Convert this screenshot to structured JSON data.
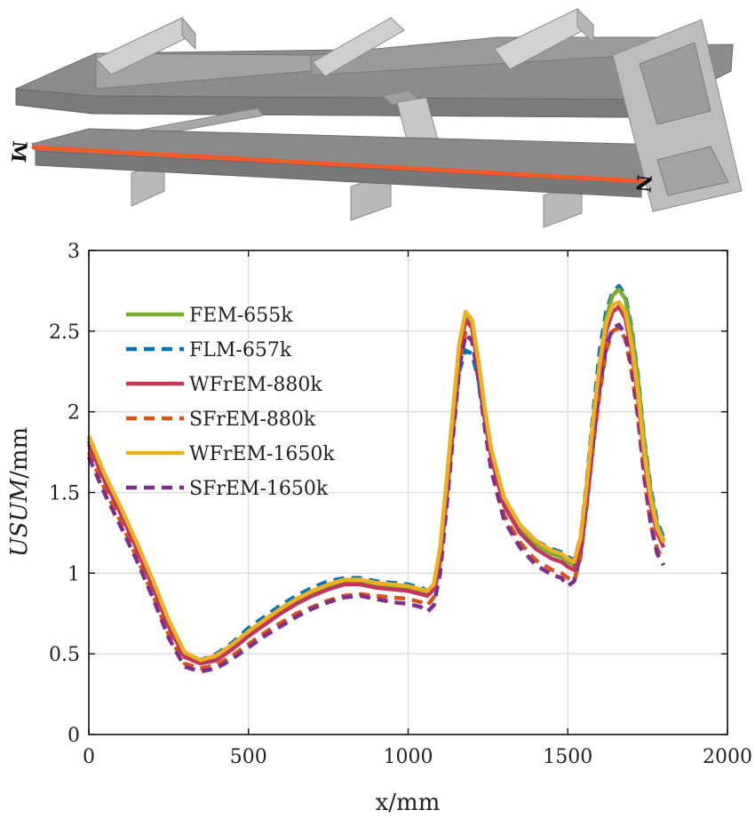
{
  "model_markers": {
    "start_label": "M",
    "end_label": "N"
  },
  "chart_data": {
    "type": "line",
    "title": "",
    "xlabel": "x/mm",
    "ylabel_italic": "USUM",
    "ylabel_unit": "/mm",
    "xlim": [
      0,
      2000
    ],
    "ylim": [
      0,
      3
    ],
    "xticks": [
      0,
      500,
      1000,
      1500,
      2000
    ],
    "yticks": [
      0,
      0.5,
      1,
      1.5,
      2,
      2.5,
      3
    ],
    "xtick_labels": [
      "0",
      "500",
      "1000",
      "1500",
      "2000"
    ],
    "ytick_labels": [
      "0",
      "0.5",
      "1",
      "1.5",
      "2",
      "2.5",
      "3"
    ],
    "grid": true,
    "legend_position": "top-left",
    "x": [
      0,
      50,
      100,
      150,
      200,
      250,
      300,
      350,
      400,
      450,
      500,
      550,
      600,
      650,
      700,
      750,
      800,
      850,
      900,
      950,
      1000,
      1040,
      1060,
      1080,
      1100,
      1120,
      1140,
      1160,
      1180,
      1200,
      1220,
      1240,
      1260,
      1300,
      1350,
      1400,
      1450,
      1480,
      1500,
      1520,
      1540,
      1560,
      1580,
      1600,
      1620,
      1640,
      1660,
      1680,
      1700,
      1720,
      1740,
      1760,
      1780,
      1800
    ],
    "series": [
      {
        "name": "FEM-655k",
        "color": "#77ac30",
        "dash": "solid",
        "values": [
          1.84,
          1.6,
          1.4,
          1.18,
          0.95,
          0.7,
          0.5,
          0.45,
          0.48,
          0.55,
          0.63,
          0.7,
          0.77,
          0.83,
          0.88,
          0.92,
          0.95,
          0.95,
          0.93,
          0.92,
          0.91,
          0.89,
          0.88,
          0.92,
          1.15,
          1.55,
          1.98,
          2.4,
          2.6,
          2.55,
          2.3,
          2.0,
          1.75,
          1.45,
          1.28,
          1.18,
          1.12,
          1.1,
          1.07,
          1.05,
          1.2,
          1.55,
          1.95,
          2.3,
          2.58,
          2.72,
          2.76,
          2.7,
          2.5,
          2.2,
          1.8,
          1.5,
          1.3,
          1.2
        ]
      },
      {
        "name": "FLM-657k",
        "color": "#0072bd",
        "dash": "dashed",
        "values": [
          1.82,
          1.58,
          1.38,
          1.16,
          0.92,
          0.68,
          0.49,
          0.46,
          0.5,
          0.57,
          0.66,
          0.73,
          0.8,
          0.86,
          0.91,
          0.95,
          0.97,
          0.97,
          0.95,
          0.94,
          0.93,
          0.91,
          0.89,
          0.92,
          1.12,
          1.5,
          1.9,
          2.25,
          2.38,
          2.36,
          2.2,
          1.95,
          1.73,
          1.46,
          1.3,
          1.2,
          1.15,
          1.13,
          1.1,
          1.08,
          1.22,
          1.58,
          2.0,
          2.38,
          2.62,
          2.74,
          2.78,
          2.72,
          2.52,
          2.22,
          1.82,
          1.52,
          1.32,
          1.22
        ]
      },
      {
        "name": "WFrEM-880k",
        "color": "#c2365c",
        "dash": "solid",
        "values": [
          1.8,
          1.57,
          1.37,
          1.15,
          0.92,
          0.67,
          0.48,
          0.44,
          0.46,
          0.53,
          0.61,
          0.68,
          0.75,
          0.81,
          0.86,
          0.9,
          0.93,
          0.93,
          0.91,
          0.9,
          0.89,
          0.87,
          0.86,
          0.9,
          1.12,
          1.52,
          1.95,
          2.37,
          2.57,
          2.52,
          2.27,
          1.97,
          1.72,
          1.42,
          1.25,
          1.15,
          1.09,
          1.07,
          1.04,
          1.02,
          1.17,
          1.5,
          1.9,
          2.25,
          2.5,
          2.62,
          2.65,
          2.58,
          2.38,
          2.08,
          1.7,
          1.42,
          1.25,
          1.16
        ]
      },
      {
        "name": "SFrEM-880k",
        "color": "#d95319",
        "dash": "dashed",
        "values": [
          1.75,
          1.52,
          1.32,
          1.1,
          0.87,
          0.62,
          0.44,
          0.41,
          0.43,
          0.49,
          0.56,
          0.63,
          0.69,
          0.75,
          0.79,
          0.83,
          0.86,
          0.87,
          0.86,
          0.85,
          0.84,
          0.82,
          0.8,
          0.85,
          1.07,
          1.45,
          1.88,
          2.3,
          2.5,
          2.46,
          2.22,
          1.92,
          1.67,
          1.36,
          1.19,
          1.08,
          1.02,
          1.0,
          0.97,
          0.95,
          1.1,
          1.43,
          1.8,
          2.12,
          2.38,
          2.5,
          2.52,
          2.45,
          2.25,
          1.96,
          1.58,
          1.3,
          1.15,
          1.08
        ]
      },
      {
        "name": "WFrEM-1650k",
        "color": "#edb120",
        "dash": "solid",
        "values": [
          1.85,
          1.61,
          1.41,
          1.19,
          0.96,
          0.71,
          0.51,
          0.46,
          0.49,
          0.56,
          0.64,
          0.71,
          0.78,
          0.84,
          0.89,
          0.93,
          0.96,
          0.96,
          0.94,
          0.93,
          0.92,
          0.9,
          0.89,
          0.93,
          1.16,
          1.56,
          2.0,
          2.42,
          2.62,
          2.57,
          2.32,
          2.02,
          1.77,
          1.47,
          1.3,
          1.2,
          1.14,
          1.12,
          1.09,
          1.07,
          1.22,
          1.56,
          1.96,
          2.3,
          2.55,
          2.66,
          2.68,
          2.62,
          2.42,
          2.12,
          1.74,
          1.46,
          1.28,
          1.19
        ]
      },
      {
        "name": "SFrEM-1650k",
        "color": "#7e2f8e",
        "dash": "dashed",
        "values": [
          1.72,
          1.49,
          1.29,
          1.08,
          0.85,
          0.6,
          0.42,
          0.39,
          0.41,
          0.47,
          0.54,
          0.61,
          0.67,
          0.73,
          0.78,
          0.82,
          0.85,
          0.86,
          0.84,
          0.82,
          0.81,
          0.79,
          0.76,
          0.8,
          1.0,
          1.4,
          1.83,
          2.27,
          2.48,
          2.44,
          2.2,
          1.9,
          1.64,
          1.33,
          1.16,
          1.05,
          0.99,
          0.97,
          0.92,
          0.95,
          1.12,
          1.45,
          1.82,
          2.15,
          2.4,
          2.52,
          2.54,
          2.48,
          2.28,
          1.98,
          1.6,
          1.3,
          1.12,
          1.05
        ]
      }
    ]
  }
}
